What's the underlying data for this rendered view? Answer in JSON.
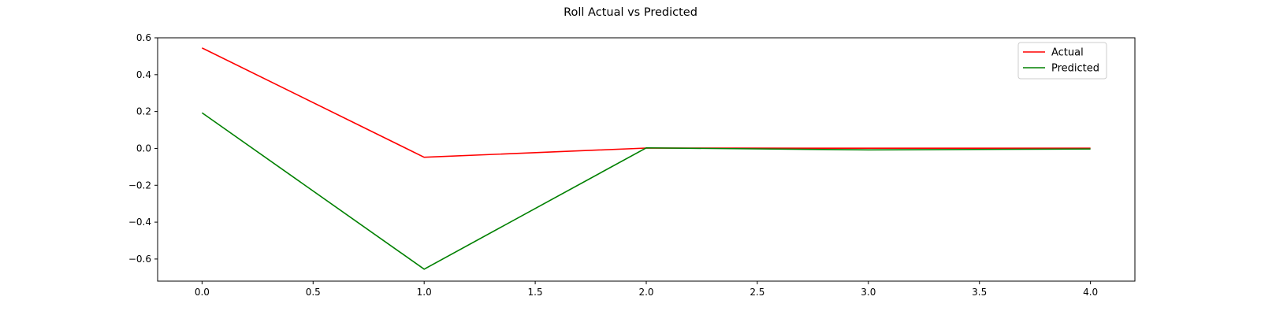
{
  "chart_data": {
    "type": "line",
    "title": "Roll Actual vs Predicted",
    "xlabel": "",
    "ylabel": "",
    "x": [
      0,
      1,
      2,
      3,
      4
    ],
    "xlim": [
      -0.2,
      4.2
    ],
    "ylim": [
      -0.72,
      0.6
    ],
    "xticks": [
      0.0,
      0.5,
      1.0,
      1.5,
      2.0,
      2.5,
      3.0,
      3.5,
      4.0
    ],
    "xtick_labels": [
      "0.0",
      "0.5",
      "1.0",
      "1.5",
      "2.0",
      "2.5",
      "3.0",
      "3.5",
      "4.0"
    ],
    "yticks": [
      -0.6,
      -0.4,
      -0.2,
      0.0,
      0.2,
      0.4,
      0.6
    ],
    "ytick_labels": [
      "−0.6",
      "−0.4",
      "−0.2",
      "0.0",
      "0.2",
      "0.4",
      "0.6"
    ],
    "grid": false,
    "legend_position": "top-right",
    "series": [
      {
        "name": "Actual",
        "color": "#ff0000",
        "values": [
          0.545,
          -0.048,
          0.002,
          0.001,
          0.001
        ]
      },
      {
        "name": "Predicted",
        "color": "#008000",
        "values": [
          0.193,
          -0.655,
          0.003,
          -0.008,
          -0.003
        ]
      }
    ]
  }
}
